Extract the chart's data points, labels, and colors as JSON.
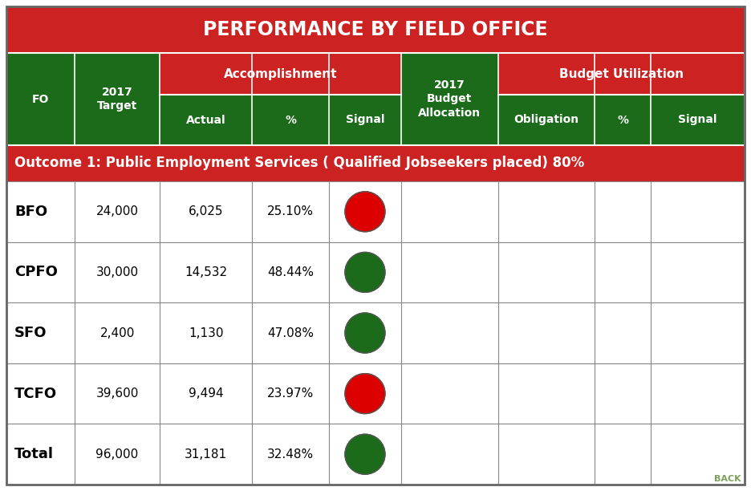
{
  "title": "PERFORMANCE BY FIELD OFFICE",
  "title_bg": "#CC2222",
  "title_color": "#FFFFFF",
  "header_bg_dark": "#1B6B1B",
  "header_bg_red": "#CC2222",
  "outcome_bg": "#CC2222",
  "outcome_text": "Outcome 1: Public Employment Services ( Qualified Jobseekers placed) 80%",
  "outcome_text_color": "#FFFFFF",
  "grid_color": "#888888",
  "rows": [
    {
      "fo": "BFO",
      "target": "24,000",
      "actual": "6,025",
      "pct": "25.10%",
      "signal": "red"
    },
    {
      "fo": "CPFO",
      "target": "30,000",
      "actual": "14,532",
      "pct": "48.44%",
      "signal": "green"
    },
    {
      "fo": "SFO",
      "target": "2,400",
      "actual": "1,130",
      "pct": "47.08%",
      "signal": "green"
    },
    {
      "fo": "TCFO",
      "target": "39,600",
      "actual": "9,494",
      "pct": "23.97%",
      "signal": "red"
    },
    {
      "fo": "Total",
      "target": "96,000",
      "actual": "31,181",
      "pct": "32.48%",
      "signal": "green"
    }
  ],
  "signal_red": "#DD0000",
  "signal_green": "#1B6B1B",
  "back_text": "BACK",
  "back_color": "#7BA05B",
  "col_widths_raw": [
    85,
    105,
    115,
    95,
    90,
    120,
    120,
    70,
    116
  ]
}
